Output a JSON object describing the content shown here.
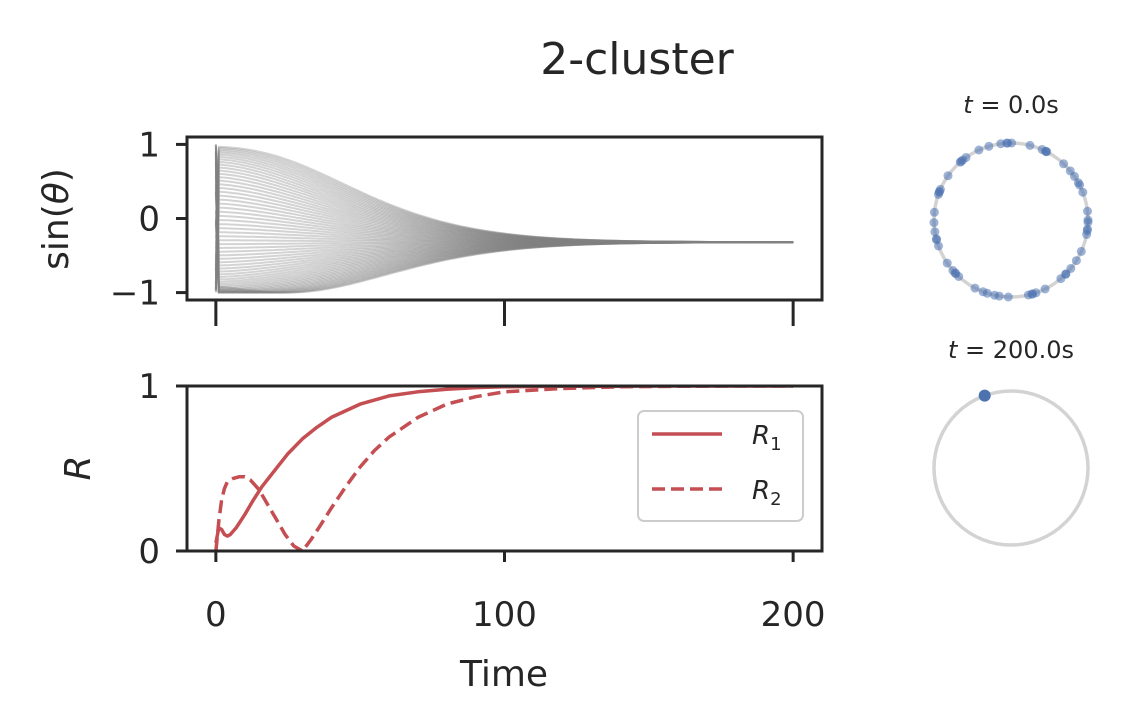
{
  "title": "2-cluster",
  "colors": {
    "axis": "#262626",
    "oscillator_line": "#808080",
    "r_line": "#c44e52",
    "point": "#4c72b0",
    "ring": "#d3d3d3"
  },
  "chart_data": [
    {
      "type": "line",
      "panel": "phase-trajectories",
      "ylabel_parts": [
        "sin(",
        "θ",
        ")"
      ],
      "xlim": [
        -10,
        210
      ],
      "ylim": [
        -1.1,
        1.1
      ],
      "yticks": [
        1,
        0,
        -1
      ],
      "ytick_labels": [
        "1",
        "0",
        "−1"
      ],
      "xticks": [
        0,
        100,
        200
      ],
      "shared_x_with": "order-parameters",
      "n_oscillators": 60,
      "series_description": "sin(theta_i(t)) for each oscillator, converging to one value",
      "final_value": -0.32,
      "t_range": [
        0,
        200
      ]
    },
    {
      "type": "line",
      "panel": "order-parameters",
      "ylabel": "R",
      "xlabel": "Time",
      "xlim": [
        -10,
        210
      ],
      "ylim": [
        0,
        1
      ],
      "yticks": [
        1,
        0
      ],
      "ytick_labels": [
        "1",
        "0"
      ],
      "xticks": [
        0,
        100,
        200
      ],
      "xtick_labels": [
        "0",
        "100",
        "200"
      ],
      "legend_position": "center-right",
      "series": [
        {
          "name": "R",
          "subscript": "1",
          "style": "solid",
          "x": [
            0,
            1,
            2,
            3,
            4,
            5,
            7,
            10,
            13,
            16,
            20,
            25,
            30,
            35,
            40,
            50,
            60,
            70,
            80,
            90,
            100,
            120,
            140,
            160,
            180,
            200
          ],
          "values": [
            0.05,
            0.14,
            0.13,
            0.1,
            0.09,
            0.1,
            0.14,
            0.22,
            0.31,
            0.39,
            0.48,
            0.59,
            0.68,
            0.75,
            0.81,
            0.89,
            0.94,
            0.965,
            0.98,
            0.99,
            0.995,
            0.998,
            0.999,
            1.0,
            1.0,
            1.0
          ]
        },
        {
          "name": "R",
          "subscript": "2",
          "style": "dashed",
          "x": [
            0,
            1,
            2,
            3,
            4,
            6,
            8,
            10,
            12,
            15,
            18,
            21,
            24,
            27,
            30,
            33,
            36,
            40,
            45,
            50,
            55,
            60,
            70,
            80,
            90,
            100,
            120,
            140,
            160,
            180,
            200
          ],
          "values": [
            0.0,
            0.18,
            0.31,
            0.38,
            0.42,
            0.44,
            0.45,
            0.45,
            0.43,
            0.37,
            0.28,
            0.19,
            0.1,
            0.03,
            0.0,
            0.07,
            0.15,
            0.26,
            0.39,
            0.51,
            0.61,
            0.69,
            0.81,
            0.89,
            0.935,
            0.965,
            0.985,
            0.995,
            0.998,
            1.0,
            1.0
          ]
        }
      ]
    },
    {
      "type": "scatter",
      "panel": "snapshot-start",
      "title_var": "t",
      "title_value": " = 0.0s",
      "layout": "unit-circle",
      "points_description": "phases uniformly spread around unit circle",
      "n_points": 60
    },
    {
      "type": "scatter",
      "panel": "snapshot-end",
      "title_var": "t",
      "title_value": " = 200.0s",
      "layout": "unit-circle",
      "points": [
        {
          "angle_deg": 110
        }
      ]
    }
  ]
}
